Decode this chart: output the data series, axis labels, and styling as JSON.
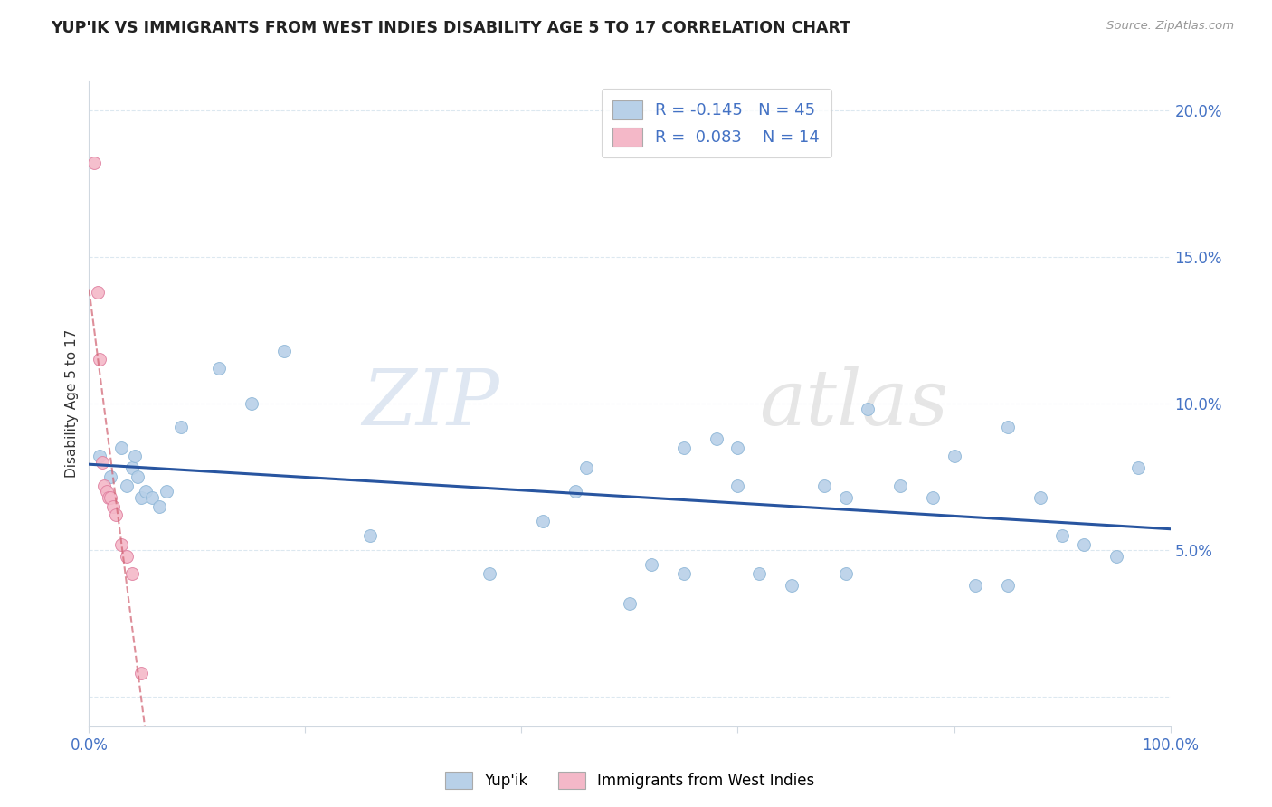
{
  "title": "YUP'IK VS IMMIGRANTS FROM WEST INDIES DISABILITY AGE 5 TO 17 CORRELATION CHART",
  "source": "Source: ZipAtlas.com",
  "ylabel": "Disability Age 5 to 17",
  "legend1_label": "Yup'ik",
  "legend2_label": "Immigrants from West Indies",
  "series1_color": "#b8d0e8",
  "series1_edge": "#90b8d8",
  "series2_color": "#f4b8c8",
  "series2_edge": "#e080a0",
  "trendline1_color": "#2855a0",
  "trendline2_color": "#d06070",
  "R1": -0.145,
  "N1": 45,
  "R2": 0.083,
  "N2": 14,
  "watermark_zip": "ZIP",
  "watermark_atlas": "atlas",
  "yaxis_color": "#4472c4",
  "xmin": 0,
  "xmax": 100,
  "ymin": -1,
  "ymax": 21,
  "yticks": [
    0,
    5,
    10,
    15,
    20
  ],
  "ytick_labels": [
    "",
    "5.0%",
    "10.0%",
    "15.0%",
    "20.0%"
  ],
  "series1_x": [
    1.0,
    2.0,
    3.0,
    3.5,
    4.0,
    4.2,
    4.5,
    4.8,
    5.2,
    5.8,
    6.5,
    7.2,
    8.5,
    12.0,
    15.0,
    18.0,
    26.0,
    37.0,
    46.0,
    50.0,
    55.0,
    58.0,
    60.0,
    62.0,
    65.0,
    68.0,
    70.0,
    72.0,
    75.0,
    78.0,
    80.0,
    82.0,
    85.0,
    88.0,
    90.0,
    92.0,
    95.0,
    97.0,
    60.0,
    45.0,
    52.0,
    70.0,
    85.0,
    55.0,
    42.0
  ],
  "series1_y": [
    8.2,
    7.5,
    8.5,
    7.2,
    7.8,
    8.2,
    7.5,
    6.8,
    7.0,
    6.8,
    6.5,
    7.0,
    9.2,
    11.2,
    10.0,
    11.8,
    5.5,
    4.2,
    7.8,
    3.2,
    4.2,
    8.8,
    7.2,
    4.2,
    3.8,
    7.2,
    6.8,
    9.8,
    7.2,
    6.8,
    8.2,
    3.8,
    9.2,
    6.8,
    5.5,
    5.2,
    4.8,
    7.8,
    8.5,
    7.0,
    4.5,
    4.2,
    3.8,
    8.5,
    6.0
  ],
  "series2_x": [
    0.5,
    0.8,
    1.0,
    1.2,
    1.4,
    1.6,
    1.8,
    2.0,
    2.2,
    2.5,
    3.0,
    3.5,
    4.0,
    4.8
  ],
  "series2_y": [
    18.2,
    13.8,
    11.5,
    8.0,
    7.2,
    7.0,
    6.8,
    6.8,
    6.5,
    6.2,
    5.2,
    4.8,
    4.2,
    0.8
  ],
  "background_color": "#ffffff",
  "grid_color": "#dce8f0",
  "marker_size": 100,
  "legend_R_color": "#4472c4",
  "legend_R2_color": "#d06070"
}
